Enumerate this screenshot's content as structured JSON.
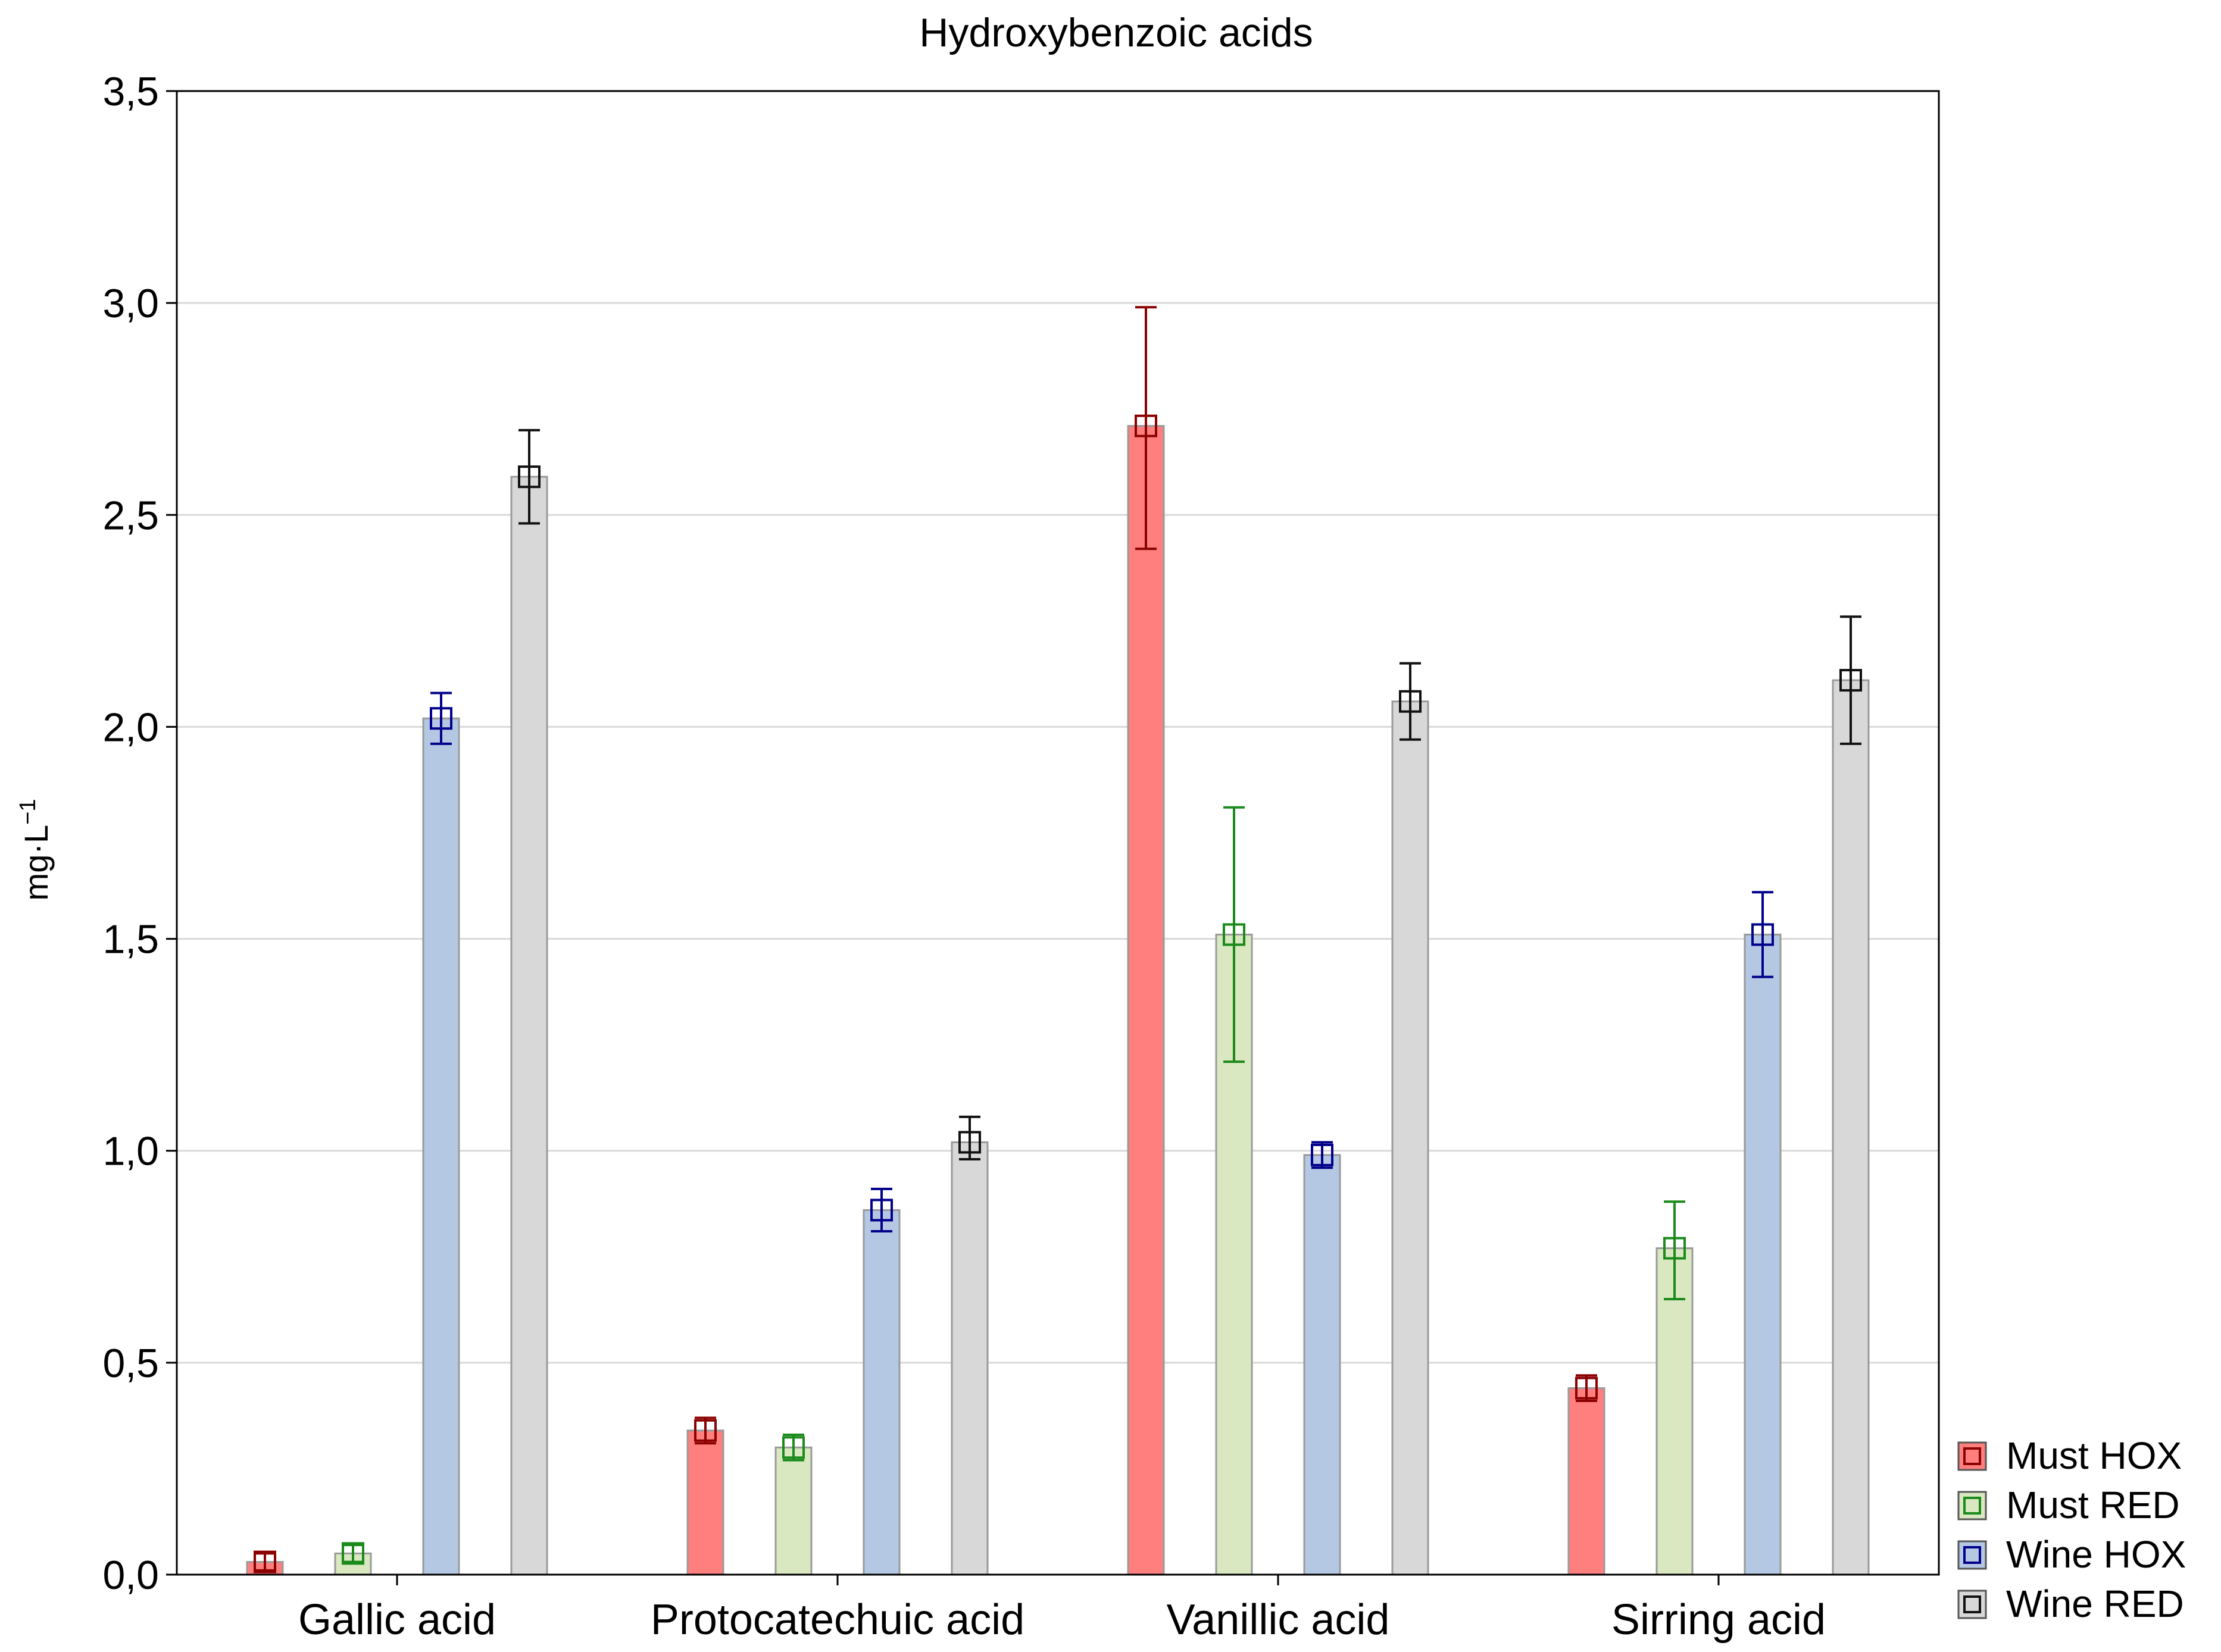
{
  "chart_data": {
    "type": "bar",
    "title": "Hydroxybenzoic acids",
    "xlabel": "",
    "ylabel": "mg·L",
    "ylabel_exponent": "−1",
    "ylim": [
      0,
      3.5
    ],
    "yticks": [
      0.0,
      0.5,
      1.0,
      1.5,
      2.0,
      2.5,
      3.0,
      3.5
    ],
    "ytick_labels": [
      "0,0",
      "0,5",
      "1,0",
      "1,5",
      "2,0",
      "2,5",
      "3,0",
      "3,5"
    ],
    "grid": true,
    "legend_position": "bottom-right",
    "categories": [
      "Gallic acid",
      "Protocatechuic acid",
      "Vanillic acid",
      "Sirring acid"
    ],
    "series": [
      {
        "name": "Must HOX",
        "fill": "#ff7f7f",
        "stroke": "#8b0000",
        "values": [
          0.03,
          0.34,
          2.71,
          0.44
        ],
        "err_low": [
          0.01,
          0.31,
          2.42,
          0.41
        ],
        "err_high": [
          0.05,
          0.37,
          2.99,
          0.47
        ]
      },
      {
        "name": "Must RED",
        "fill": "#d9e8c0",
        "stroke": "#1a8a1a",
        "values": [
          0.05,
          0.3,
          1.51,
          0.77
        ],
        "err_low": [
          0.03,
          0.27,
          1.21,
          0.65
        ],
        "err_high": [
          0.07,
          0.33,
          1.81,
          0.88
        ]
      },
      {
        "name": "Wine HOX",
        "fill": "#b4c8e4",
        "stroke": "#00008b",
        "values": [
          2.02,
          0.86,
          0.99,
          1.51
        ],
        "err_low": [
          1.96,
          0.81,
          0.96,
          1.41
        ],
        "err_high": [
          2.08,
          0.91,
          1.02,
          1.61
        ]
      },
      {
        "name": "Wine RED",
        "fill": "#d8d8d8",
        "stroke": "#111111",
        "values": [
          2.59,
          1.02,
          2.06,
          2.11
        ],
        "err_low": [
          2.48,
          0.98,
          1.97,
          1.96
        ],
        "err_high": [
          2.7,
          1.08,
          2.15,
          2.26
        ]
      }
    ]
  }
}
